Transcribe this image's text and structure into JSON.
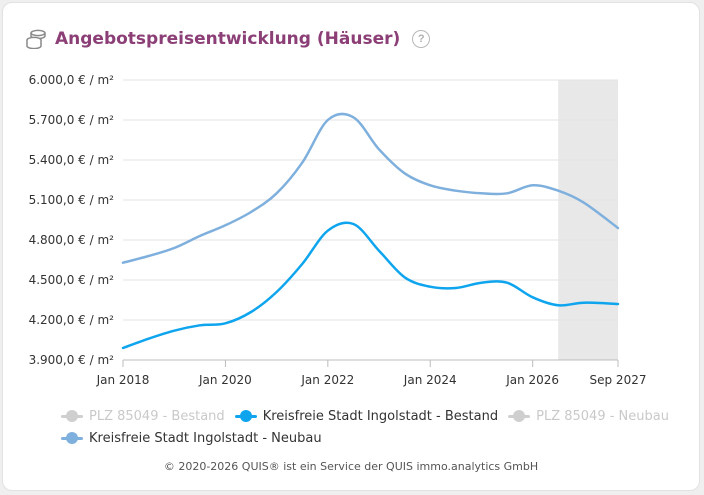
{
  "title": "Angebotspreisentwicklung (Häuser)",
  "help_icon": "?",
  "footer": "© 2020-2026 QUIS® ist ein Service der QUIS immo.analytics GmbH",
  "colors": {
    "title": "#8b3f76",
    "ingolstadt_bestand": "#0ea5ee",
    "ingolstadt_neubau": "#7fb0dd",
    "hidden_series": "#cfcfcf",
    "forecast_band": "#e8e8e8"
  },
  "legend": [
    {
      "label": "PLZ 85049 - Bestand",
      "visible": false,
      "color": "#cfcfcf"
    },
    {
      "label": "Kreisfreie Stadt Ingolstadt - Bestand",
      "visible": true,
      "color": "#0ea5ee"
    },
    {
      "label": "PLZ 85049 - Neubau",
      "visible": false,
      "color": "#cfcfcf"
    },
    {
      "label": "Kreisfreie Stadt Ingolstadt - Neubau",
      "visible": true,
      "color": "#7fb0dd"
    }
  ],
  "chart_data": {
    "type": "line",
    "y_tick_labels": [
      "3.900,0 € / m²",
      "4.200,0 € / m²",
      "4.500,0 € / m²",
      "4.800,0 € / m²",
      "5.100,0 € / m²",
      "5.400,0 € / m²",
      "5.700,0 € / m²",
      "6.000,0 € / m²"
    ],
    "y_ticks": [
      3900,
      4200,
      4500,
      4800,
      5100,
      5400,
      5700,
      6000
    ],
    "ylim": [
      3900,
      6000
    ],
    "x_ticks": [
      "2018-01",
      "2020-01",
      "2022-01",
      "2024-01",
      "2026-01",
      "2027-09"
    ],
    "x_tick_labels": [
      "Jan 2018",
      "Jan 2020",
      "Jan 2022",
      "Jan 2024",
      "Jan 2026",
      "Sep 2027"
    ],
    "xlim": [
      "2018-01",
      "2027-09"
    ],
    "forecast_start": "2026-07",
    "grid": true,
    "legend_position": "bottom",
    "series": [
      {
        "name": "Kreisfreie Stadt Ingolstadt - Bestand",
        "color": "#0ea5ee",
        "x": [
          "2018-01",
          "2018-07",
          "2019-01",
          "2019-07",
          "2020-01",
          "2020-07",
          "2021-01",
          "2021-07",
          "2022-01",
          "2022-07",
          "2023-01",
          "2023-07",
          "2024-01",
          "2024-07",
          "2025-01",
          "2025-07",
          "2026-01",
          "2026-07",
          "2027-01",
          "2027-09"
        ],
        "values": [
          3990,
          4060,
          4120,
          4160,
          4175,
          4260,
          4410,
          4620,
          4870,
          4920,
          4720,
          4520,
          4450,
          4440,
          4480,
          4480,
          4370,
          4310,
          4330,
          4320
        ]
      },
      {
        "name": "Kreisfreie Stadt Ingolstadt - Neubau",
        "color": "#7fb0dd",
        "x": [
          "2018-01",
          "2018-07",
          "2019-01",
          "2019-07",
          "2020-01",
          "2020-07",
          "2021-01",
          "2021-07",
          "2022-01",
          "2022-07",
          "2023-01",
          "2023-07",
          "2024-01",
          "2024-07",
          "2025-01",
          "2025-07",
          "2026-01",
          "2026-07",
          "2027-01",
          "2027-09"
        ],
        "values": [
          4630,
          4680,
          4740,
          4830,
          4910,
          5010,
          5150,
          5380,
          5700,
          5720,
          5480,
          5300,
          5210,
          5170,
          5150,
          5150,
          5210,
          5170,
          5080,
          4890
        ]
      }
    ]
  }
}
